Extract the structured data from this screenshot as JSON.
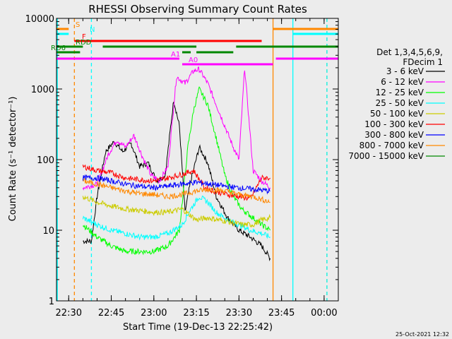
{
  "chart_data": {
    "type": "line",
    "title": "RHESSI Observing Summary Count Rates",
    "xlabel": "Start Time (19-Dec-13 22:25:42)",
    "ylabel": "Count Rate (s⁻¹ detector⁻¹)",
    "y_scale": "log",
    "ylim": [
      1,
      10000
    ],
    "xlim": [
      "22:25:42",
      "00:05:00"
    ],
    "grid": false,
    "legend_position": "right",
    "yticks": [
      "1",
      "10",
      "100",
      "1000",
      "10000"
    ],
    "xticks": [
      "22:30",
      "22:45",
      "23:00",
      "23:15",
      "23:30",
      "23:45",
      "00:00"
    ],
    "legend_header": [
      "Det 1,3,4,5,6,9,",
      "FDecim 1"
    ],
    "series": [
      {
        "name": "3 - 6 keV",
        "color": "#000000",
        "points": [
          [
            "22:35",
            7
          ],
          [
            "22:38",
            7
          ],
          [
            "22:40",
            30
          ],
          [
            "22:43",
            130
          ],
          [
            "22:46",
            180
          ],
          [
            "22:49",
            130
          ],
          [
            "22:52",
            170
          ],
          [
            "22:55",
            80
          ],
          [
            "22:58",
            90
          ],
          [
            "23:01",
            50
          ],
          [
            "23:04",
            60
          ],
          [
            "23:07",
            700
          ],
          [
            "23:09",
            300
          ],
          [
            "23:11",
            18
          ],
          [
            "23:13",
            50
          ],
          [
            "23:16",
            150
          ],
          [
            "23:19",
            90
          ],
          [
            "23:22",
            30
          ],
          [
            "23:26",
            15
          ],
          [
            "23:30",
            10
          ],
          [
            "23:34",
            8
          ],
          [
            "23:38",
            6
          ],
          [
            "23:41",
            4
          ]
        ]
      },
      {
        "name": "6 - 12 keV",
        "color": "#ff00ff",
        "points": [
          [
            "22:35",
            40
          ],
          [
            "22:40",
            45
          ],
          [
            "22:44",
            120
          ],
          [
            "22:47",
            190
          ],
          [
            "22:50",
            150
          ],
          [
            "22:53",
            220
          ],
          [
            "22:56",
            110
          ],
          [
            "22:59",
            60
          ],
          [
            "23:02",
            50
          ],
          [
            "23:05",
            80
          ],
          [
            "23:08",
            1500
          ],
          [
            "23:11",
            1200
          ],
          [
            "23:14",
            1800
          ],
          [
            "23:16",
            1900
          ],
          [
            "23:19",
            1200
          ],
          [
            "23:22",
            600
          ],
          [
            "23:25",
            300
          ],
          [
            "23:28",
            150
          ],
          [
            "23:30",
            100
          ],
          [
            "23:32",
            2000
          ],
          [
            "23:35",
            70
          ],
          [
            "23:38",
            50
          ],
          [
            "23:41",
            40
          ]
        ]
      },
      {
        "name": "12 - 25 keV",
        "color": "#00ff00",
        "points": [
          [
            "22:35",
            12
          ],
          [
            "22:40",
            8
          ],
          [
            "22:45",
            6
          ],
          [
            "22:50",
            5
          ],
          [
            "22:55",
            5
          ],
          [
            "23:00",
            5
          ],
          [
            "23:05",
            6
          ],
          [
            "23:09",
            10
          ],
          [
            "23:12",
            150
          ],
          [
            "23:14",
            500
          ],
          [
            "23:16",
            1000
          ],
          [
            "23:19",
            600
          ],
          [
            "23:22",
            200
          ],
          [
            "23:25",
            60
          ],
          [
            "23:28",
            30
          ],
          [
            "23:31",
            20
          ],
          [
            "23:35",
            15
          ],
          [
            "23:38",
            12
          ],
          [
            "23:41",
            10
          ]
        ]
      },
      {
        "name": "25 - 50 keV",
        "color": "#00ffff",
        "points": [
          [
            "22:35",
            15
          ],
          [
            "22:40",
            12
          ],
          [
            "22:45",
            10
          ],
          [
            "22:50",
            9
          ],
          [
            "22:55",
            8
          ],
          [
            "23:00",
            8
          ],
          [
            "23:05",
            9
          ],
          [
            "23:10",
            12
          ],
          [
            "23:13",
            20
          ],
          [
            "23:16",
            30
          ],
          [
            "23:19",
            25
          ],
          [
            "23:22",
            18
          ],
          [
            "23:26",
            14
          ],
          [
            "23:30",
            12
          ],
          [
            "23:34",
            10
          ],
          [
            "23:38",
            9
          ],
          [
            "23:41",
            8
          ]
        ]
      },
      {
        "name": "50 - 100 keV",
        "color": "#cccc00",
        "points": [
          [
            "22:35",
            30
          ],
          [
            "22:40",
            25
          ],
          [
            "22:45",
            22
          ],
          [
            "22:50",
            20
          ],
          [
            "22:55",
            19
          ],
          [
            "23:00",
            18
          ],
          [
            "23:05",
            18
          ],
          [
            "23:10",
            20
          ],
          [
            "23:15",
            14
          ],
          [
            "23:19",
            15
          ],
          [
            "23:23",
            14
          ],
          [
            "23:27",
            13
          ],
          [
            "23:31",
            12
          ],
          [
            "23:35",
            12
          ],
          [
            "23:38",
            14
          ],
          [
            "23:41",
            15
          ]
        ]
      },
      {
        "name": "100 - 300 keV",
        "color": "#ff0000",
        "points": [
          [
            "22:35",
            80
          ],
          [
            "22:40",
            70
          ],
          [
            "22:45",
            65
          ],
          [
            "22:50",
            55
          ],
          [
            "22:55",
            52
          ],
          [
            "23:00",
            50
          ],
          [
            "23:05",
            55
          ],
          [
            "23:10",
            62
          ],
          [
            "23:14",
            70
          ],
          [
            "23:18",
            40
          ],
          [
            "23:22",
            35
          ],
          [
            "23:26",
            32
          ],
          [
            "23:30",
            30
          ],
          [
            "23:34",
            28
          ],
          [
            "23:38",
            55
          ],
          [
            "23:41",
            55
          ]
        ]
      },
      {
        "name": "300 - 800 keV",
        "color": "#0000ff",
        "points": [
          [
            "22:35",
            55
          ],
          [
            "22:40",
            55
          ],
          [
            "22:45",
            50
          ],
          [
            "22:50",
            45
          ],
          [
            "22:55",
            42
          ],
          [
            "23:00",
            40
          ],
          [
            "23:05",
            42
          ],
          [
            "23:10",
            45
          ],
          [
            "23:15",
            48
          ],
          [
            "23:20",
            45
          ],
          [
            "23:25",
            42
          ],
          [
            "23:30",
            40
          ],
          [
            "23:35",
            38
          ],
          [
            "23:41",
            36
          ]
        ]
      },
      {
        "name": "800 - 7000 keV",
        "color": "#ff8800",
        "points": [
          [
            "22:35",
            50
          ],
          [
            "22:40",
            45
          ],
          [
            "22:45",
            40
          ],
          [
            "22:50",
            36
          ],
          [
            "22:55",
            33
          ],
          [
            "23:00",
            32
          ],
          [
            "23:05",
            30
          ],
          [
            "23:10",
            32
          ],
          [
            "23:15",
            36
          ],
          [
            "23:20",
            38
          ],
          [
            "23:25",
            36
          ],
          [
            "23:30",
            32
          ],
          [
            "23:35",
            30
          ],
          [
            "23:41",
            25
          ]
        ]
      },
      {
        "name": "7000 - 15000 keV",
        "color": "#008800",
        "points": []
      }
    ],
    "flag_bars": [
      {
        "label": "S",
        "color": "#ff8800",
        "segments": [
          [
            "22:25:42",
            "22:30"
          ],
          [
            "23:42",
            "00:05"
          ]
        ]
      },
      {
        "label": "N",
        "color": "#00ffff",
        "segments": [
          [
            "22:25:42",
            "22:30"
          ],
          [
            "23:49",
            "00:05"
          ]
        ]
      },
      {
        "label": "F",
        "color": "#ff0000",
        "segments": [
          [
            "22:32",
            "23:38"
          ]
        ]
      },
      {
        "label": "RDD",
        "color": "#008800",
        "segments": [
          [
            "22:25:42",
            "22:35"
          ],
          [
            "22:42",
            "23:15"
          ],
          [
            "23:29",
            "00:05"
          ]
        ]
      },
      {
        "label": "RD6",
        "color": "#008800",
        "segments": [
          [
            "22:25:42",
            "22:34"
          ],
          [
            "23:10",
            "23:13"
          ],
          [
            "23:15",
            "23:28"
          ]
        ]
      },
      {
        "label": "A1",
        "color": "#ff00ff",
        "segments": [
          [
            "22:25:42",
            "23:09"
          ],
          [
            "23:43",
            "00:05"
          ]
        ]
      },
      {
        "label": "A0",
        "color": "#ff00ff",
        "segments": [
          [
            "23:10",
            "23:42"
          ]
        ]
      }
    ],
    "vertical_markers": [
      {
        "time": "22:26",
        "color": "#00ffff",
        "style": "solid"
      },
      {
        "time": "22:32",
        "color": "#ff8800",
        "style": "dashed"
      },
      {
        "time": "22:38",
        "color": "#00ffff",
        "style": "dashed"
      },
      {
        "time": "23:42",
        "color": "#ff8800",
        "style": "solid"
      },
      {
        "time": "23:49",
        "color": "#00ffff",
        "style": "solid"
      },
      {
        "time": "00:01",
        "color": "#ff8800",
        "style": "dashed"
      },
      {
        "time": "00:01",
        "color": "#00ffff",
        "style": "dashed"
      }
    ]
  },
  "footer_timestamp": "25-Oct-2021 12:32"
}
